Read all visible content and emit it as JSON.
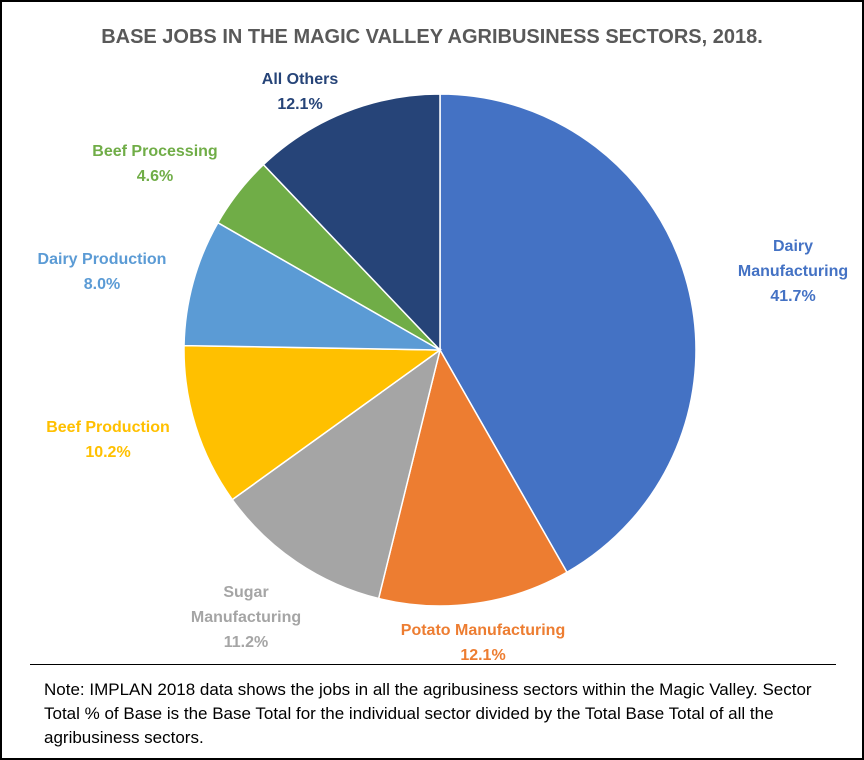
{
  "chart_data": {
    "type": "pie",
    "title": "BASE JOBS IN THE MAGIC VALLEY AGRIBUSINESS SECTORS, 2018.",
    "slices": [
      {
        "label_lines": [
          "Dairy",
          "Manufacturing"
        ],
        "value_label": "41.7%",
        "value": 41.7,
        "color": "#4472C4"
      },
      {
        "label_lines": [
          "Potato Manufacturing"
        ],
        "value_label": "12.1%",
        "value": 12.1,
        "color": "#ED7D31"
      },
      {
        "label_lines": [
          "Sugar",
          "Manufacturing"
        ],
        "value_label": "11.2%",
        "value": 11.2,
        "color": "#A5A5A5"
      },
      {
        "label_lines": [
          "Beef Production"
        ],
        "value_label": "10.2%",
        "value": 10.2,
        "color": "#FFC000"
      },
      {
        "label_lines": [
          "Dairy Production"
        ],
        "value_label": "8.0%",
        "value": 8.0,
        "color": "#5B9BD5"
      },
      {
        "label_lines": [
          "Beef Processing"
        ],
        "value_label": "4.6%",
        "value": 4.6,
        "color": "#70AD47"
      },
      {
        "label_lines": [
          "All Others"
        ],
        "value_label": "12.1%",
        "value": 12.1,
        "color": "#264478"
      }
    ]
  },
  "note": "Note: IMPLAN 2018 data shows the jobs in all the agribusiness sectors within the Magic Valley. Sector Total % of Base is the Base Total for the individual sector divided by the Total Base Total of all the agribusiness sectors."
}
